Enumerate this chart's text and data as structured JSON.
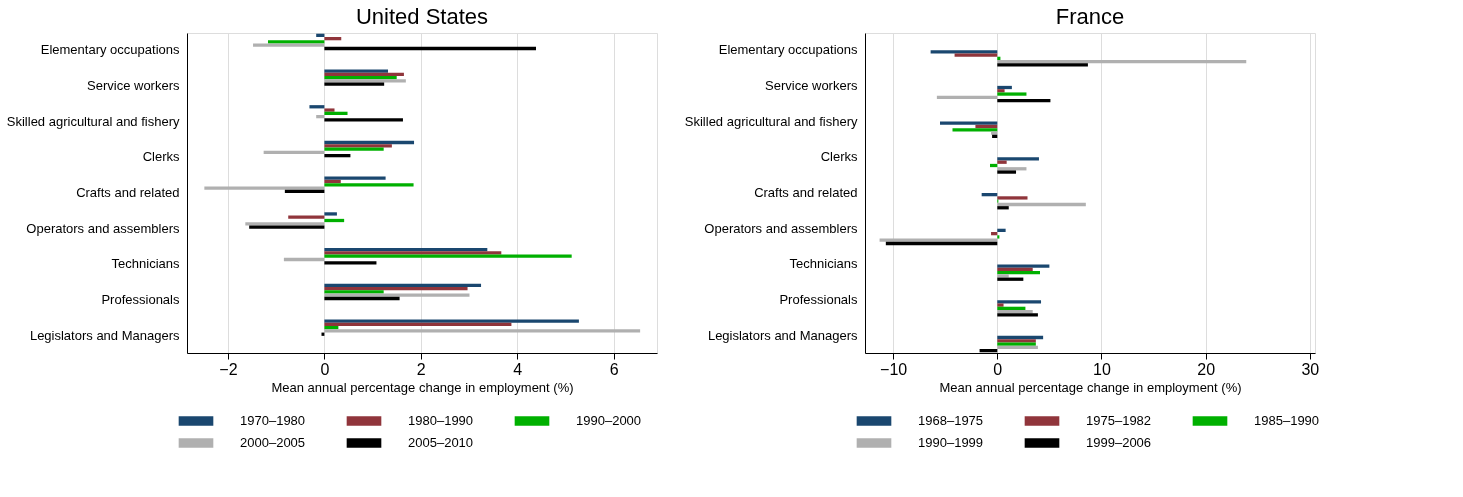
{
  "chart_data": [
    {
      "type": "bar",
      "orientation": "horizontal",
      "title": "United States",
      "xlabel": "Mean annual percentage change in employment (%)",
      "categories": [
        "Elementary occupations",
        "Service workers",
        "Skilled agricultural and fishery",
        "Clerks",
        "Crafts and related",
        "Operators and assemblers",
        "Technicians",
        "Professionals",
        "Legislators and Managers"
      ],
      "series": [
        {
          "name": "1970–1980",
          "color": "#1a476f",
          "values": [
            -0.17,
            1.32,
            -0.31,
            1.86,
            1.27,
            0.26,
            3.38,
            3.25,
            5.28
          ]
        },
        {
          "name": "1980–1990",
          "color": "#90353b",
          "values": [
            0.35,
            1.65,
            0.21,
            1.4,
            0.34,
            -0.75,
            3.67,
            2.97,
            3.88
          ]
        },
        {
          "name": "1990–2000",
          "color": "#00b000",
          "values": [
            -1.17,
            1.5,
            0.48,
            1.23,
            1.85,
            0.41,
            5.13,
            1.23,
            0.29
          ]
        },
        {
          "name": "2000–2005",
          "color": "#b0b0b0",
          "values": [
            -1.48,
            1.69,
            -0.17,
            -1.26,
            -2.49,
            -1.64,
            -0.84,
            3.01,
            6.55
          ]
        },
        {
          "name": "2005–2010",
          "color": "#000000",
          "values": [
            4.39,
            1.24,
            1.63,
            0.54,
            -0.82,
            -1.56,
            1.08,
            1.56,
            -0.06
          ]
        }
      ],
      "xlim": [
        -2.85,
        6.9
      ],
      "xticks": [
        -2,
        0,
        2,
        4,
        6
      ],
      "grid": "x",
      "legend": "bottom"
    },
    {
      "type": "bar",
      "orientation": "horizontal",
      "title": "France",
      "xlabel": "Mean annual percentage change in employment (%)",
      "categories": [
        "Elementary occupations",
        "Service workers",
        "Skilled agricultural and fishery",
        "Clerks",
        "Crafts and related",
        "Operators and assemblers",
        "Technicians",
        "Professionals",
        "Legislators and Managers"
      ],
      "series": [
        {
          "name": "1968–1975",
          "color": "#1a476f",
          "values": [
            -6.4,
            1.4,
            -5.5,
            4.0,
            -1.5,
            0.8,
            5.0,
            4.2,
            4.4
          ]
        },
        {
          "name": "1975–1982",
          "color": "#90353b",
          "values": [
            -4.1,
            0.7,
            -2.1,
            0.9,
            2.9,
            -0.6,
            3.4,
            0.6,
            3.7
          ]
        },
        {
          "name": "1985–1990",
          "color": "#00b000",
          "values": [
            0.3,
            2.8,
            -4.3,
            -0.7,
            0.1,
            0.2,
            4.1,
            2.7,
            3.7
          ]
        },
        {
          "name": "1990–1999",
          "color": "#b0b0b0",
          "values": [
            23.9,
            -5.8,
            -0.6,
            2.8,
            8.5,
            -11.3,
            1.1,
            3.4,
            3.9
          ]
        },
        {
          "name": "1999–2006",
          "color": "#000000",
          "values": [
            8.7,
            5.1,
            -0.5,
            1.8,
            1.1,
            -10.7,
            2.5,
            3.9,
            -1.7
          ]
        }
      ],
      "xlim": [
        -12.7,
        30.5
      ],
      "xticks": [
        -10,
        0,
        10,
        20,
        30
      ],
      "grid": "x",
      "legend": "bottom"
    }
  ]
}
